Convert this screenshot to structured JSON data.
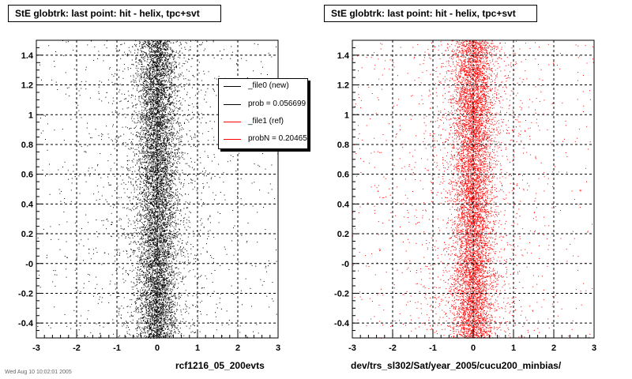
{
  "panels": [
    {
      "title": "StE globtrk: last point: hit - helix, tpc+svt",
      "xlabel": "rcf1216_05_200evts"
    },
    {
      "title": "StE globtrk: last point: hit - helix, tpc+svt",
      "xlabel": "dev/trs_sl302/Sat/year_2005/cucu200_minbias/"
    }
  ],
  "legend": {
    "entries": [
      {
        "label": "_file0 (new)",
        "color": "#000000"
      },
      {
        "label": "prob = 0.056699",
        "color": "#000000"
      },
      {
        "label": "_file1 (ref)",
        "color": "#ff0000"
      },
      {
        "label": "probN = 0.204659",
        "color": "#ff0000"
      }
    ]
  },
  "footnote": "Wed Aug 10 10:02:01 2005",
  "chart_data": [
    {
      "type": "scatter",
      "title": "StE globtrk: last point: hit - helix, tpc+svt",
      "xlabel": "rcf1216_05_200evts",
      "ylabel": "",
      "xlim": [
        -3,
        3
      ],
      "ylim": [
        -0.5,
        1.5
      ],
      "x_ticks": [
        "-3",
        "-2",
        "-1",
        "0",
        "1",
        "2",
        "3"
      ],
      "y_ticks": [
        "-0.4",
        "-0.2",
        "-0",
        "0.2",
        "0.4",
        "0.6",
        "0.8",
        "1",
        "1.2",
        "1.4"
      ],
      "grid": true,
      "marker_color": "#000000",
      "series": [
        {
          "description_values": {
            "x_center": 0.0,
            "x_core_spread": 0.25,
            "x_range": [
              -3,
              3
            ],
            "y_range": [
              -0.5,
              1.5
            ],
            "approx_points": 9000
          }
        }
      ]
    },
    {
      "type": "scatter",
      "title": "StE globtrk: last point: hit - helix, tpc+svt",
      "xlabel": "dev/trs_sl302/Sat/year_2005/cucu200_minbias/",
      "ylabel": "",
      "xlim": [
        -3,
        3
      ],
      "ylim": [
        -0.5,
        1.5
      ],
      "x_ticks": [
        "-3",
        "-2",
        "-1",
        "0",
        "1",
        "2",
        "3"
      ],
      "y_ticks": [
        "-0.4",
        "-0.2",
        "-0",
        "0.2",
        "0.4",
        "0.6",
        "0.8",
        "1",
        "1.2",
        "1.4"
      ],
      "grid": true,
      "marker_color": "#ff0000",
      "series": [
        {
          "description_values": {
            "x_center": 0.0,
            "x_core_spread": 0.25,
            "x_range": [
              -3,
              3
            ],
            "y_range": [
              -0.5,
              1.5
            ],
            "approx_points": 9000
          }
        }
      ]
    }
  ]
}
